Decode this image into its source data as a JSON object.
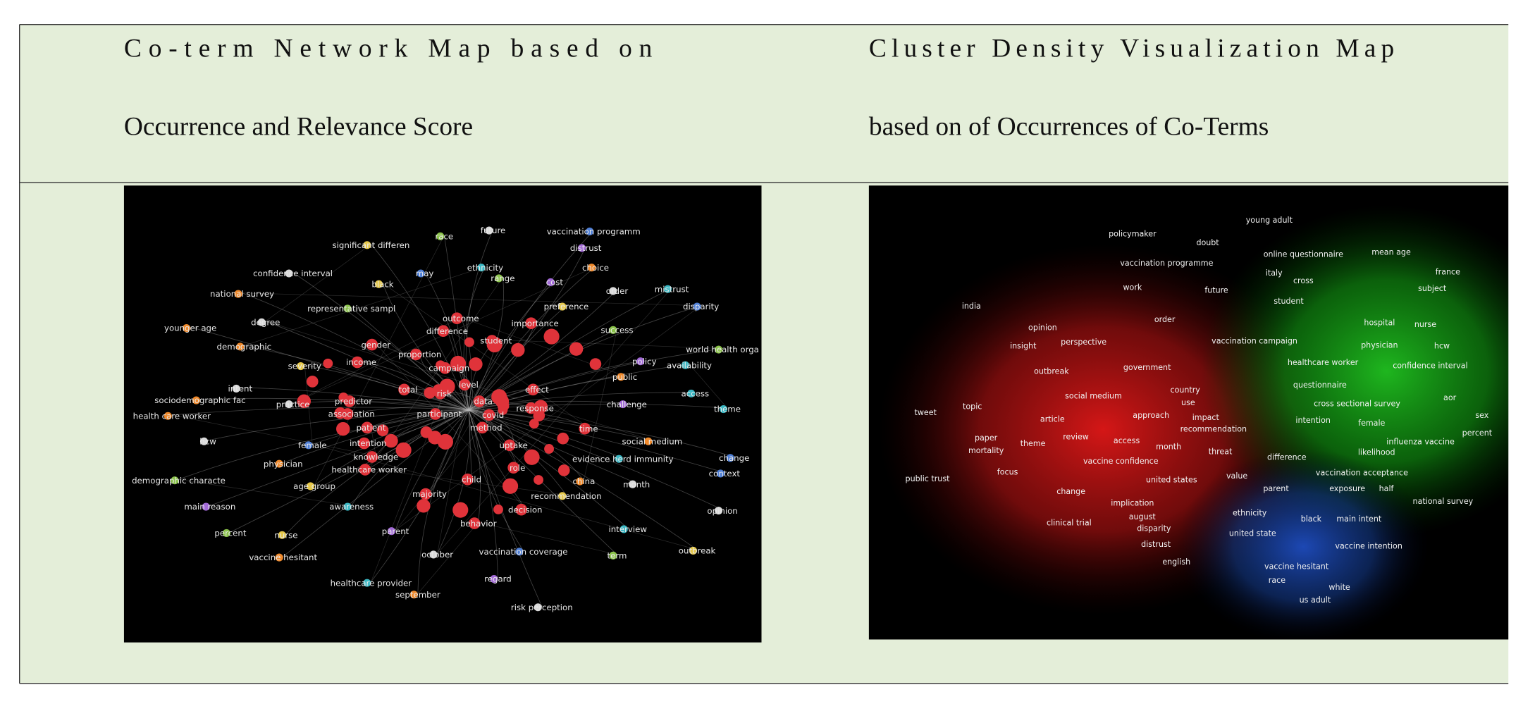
{
  "header": {
    "columns": [
      {
        "lines": [
          "Co-term Network Map based on",
          "Occurrence and Relevance Score"
        ]
      },
      {
        "lines": [
          "Cluster Density Visualization Map",
          "based on of Occurrences of Co-Terms"
        ]
      }
    ]
  },
  "network_map": {
    "terms": [
      "future",
      "vaccination programm",
      "race",
      "significant differen",
      "distrust",
      "ethnicity",
      "choice",
      "confidence interval",
      "may",
      "range",
      "black",
      "cost",
      "mistrust",
      "national survey",
      "order",
      "disparity",
      "representative sampl",
      "preference",
      "outcome",
      "importance",
      "younger age",
      "degree",
      "difference",
      "success",
      "gender",
      "proportion",
      "student",
      "demographic",
      "income",
      "campaign",
      "world health orga",
      "severity",
      "policy",
      "availability",
      "public",
      "intent",
      "level",
      "effect",
      "total",
      "risk",
      "access",
      "sociodemographic fac",
      "practice",
      "predictor",
      "data",
      "response",
      "challenge",
      "theme",
      "health care worker",
      "association",
      "participant",
      "covid",
      "patient",
      "method",
      "time",
      "social medium",
      "hcw",
      "female",
      "intention",
      "uptake",
      "knowledge",
      "evidence herd immunity",
      "physician",
      "healthcare worker",
      "change",
      "demographic characte",
      "age group",
      "child",
      "role",
      "china",
      "month",
      "context",
      "majority",
      "recommendation",
      "main reason",
      "awareness",
      "decision",
      "opinion",
      "behavior",
      "percent",
      "nurse",
      "parent",
      "interview",
      "vaccine hesitant",
      "october",
      "vaccination coverage",
      "term",
      "outbreak",
      "regard",
      "healthcare provider",
      "september",
      "risk perception"
    ]
  },
  "density_map": {
    "terms": [
      "young adult",
      "policymaker",
      "doubt",
      "online questionnaire",
      "mean age",
      "vaccination programme",
      "italy",
      "france",
      "cross",
      "work",
      "future",
      "subject",
      "student",
      "india",
      "order",
      "hospital",
      "nurse",
      "opinion",
      "perspective",
      "vaccination campaign",
      "physician",
      "hcw",
      "insight",
      "healthcare worker",
      "confidence interval",
      "government",
      "outbreak",
      "questionnaire",
      "country",
      "social medium",
      "use",
      "cross sectional survey",
      "aor",
      "tweet",
      "topic",
      "approach",
      "impact",
      "article",
      "intention",
      "female",
      "sex",
      "recommendation",
      "review",
      "access",
      "month",
      "paper",
      "influenza vaccine",
      "percent",
      "mortality",
      "theme",
      "threat",
      "difference",
      "likelihood",
      "vaccine confidence",
      "focus",
      "vaccination acceptance",
      "public trust",
      "united states",
      "value",
      "parent",
      "exposure",
      "half",
      "national survey",
      "change",
      "implication",
      "ethnicity",
      "black",
      "main intent",
      "august",
      "clinical trial",
      "disparity",
      "united state",
      "vaccine intention",
      "distrust",
      "english",
      "vaccine hesitant",
      "race",
      "white",
      "us adult"
    ]
  }
}
